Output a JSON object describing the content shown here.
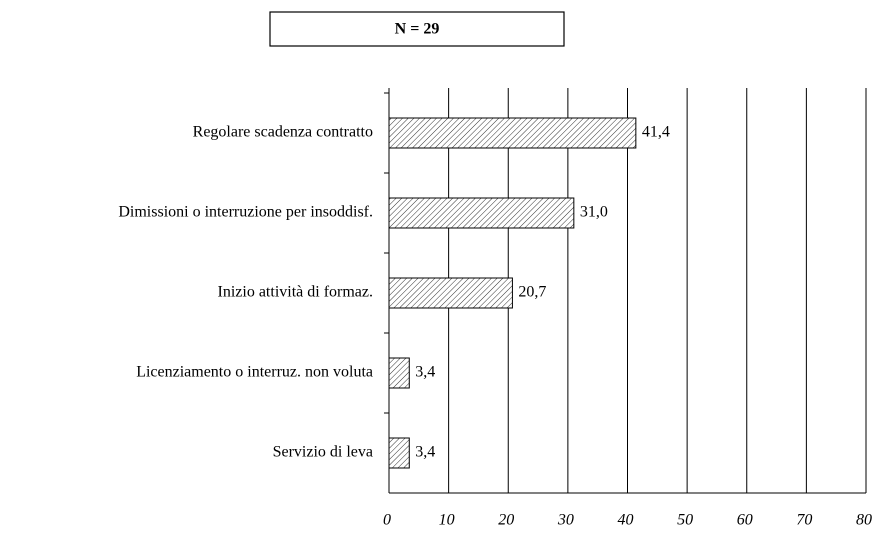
{
  "chart_data": {
    "type": "bar",
    "orientation": "horizontal",
    "title": "N = 29",
    "categories": [
      "Regolare scadenza contratto",
      "Dimissioni o interruzione per insoddisf.",
      "Inizio attività di formaz.",
      "Licenziamento o interruz. non voluta",
      "Servizio di leva"
    ],
    "values": [
      41.4,
      31.0,
      20.7,
      3.4,
      3.4
    ],
    "value_labels": [
      "41,4",
      "31,0",
      "20,7",
      "3,4",
      "3,4"
    ],
    "xlim": [
      0,
      80
    ],
    "xticks": [
      0,
      10,
      20,
      30,
      40,
      50,
      60,
      70,
      80
    ],
    "grid": true
  }
}
